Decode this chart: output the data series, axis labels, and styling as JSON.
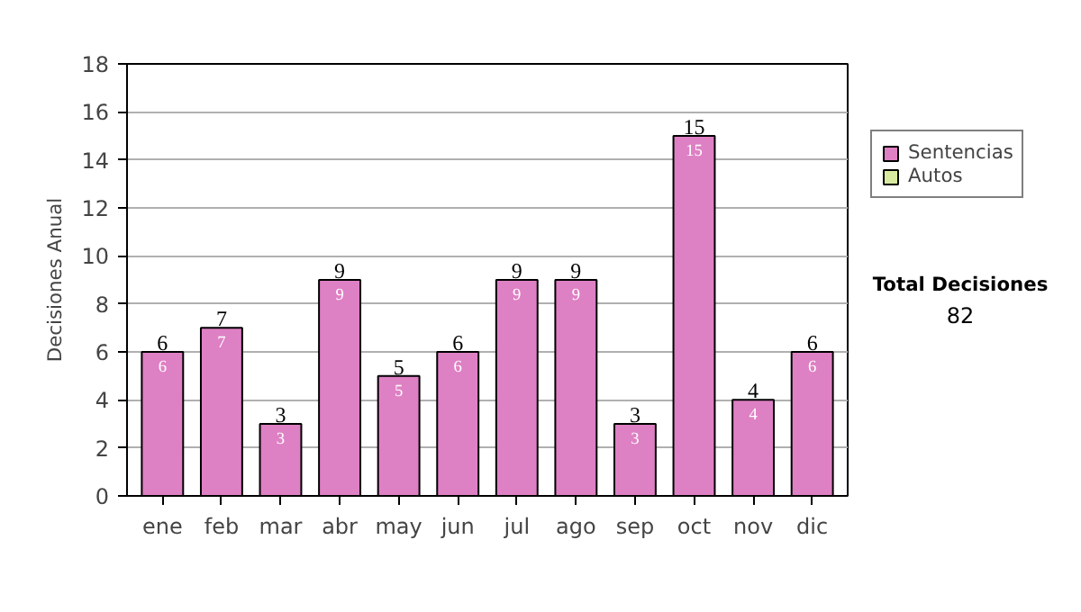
{
  "chart_data": {
    "type": "bar",
    "ylabel": "Decisiones Anual",
    "categories": [
      "ene",
      "feb",
      "mar",
      "abr",
      "may",
      "jun",
      "jul",
      "ago",
      "sep",
      "oct",
      "nov",
      "dic"
    ],
    "series": [
      {
        "name": "Sentencias",
        "color": "#de80c4",
        "values": [
          6,
          7,
          3,
          9,
          5,
          6,
          9,
          9,
          3,
          15,
          4,
          6
        ]
      },
      {
        "name": "Autos",
        "color": "#d8eaa0",
        "values": [
          null,
          null,
          null,
          null,
          null,
          null,
          null,
          null,
          null,
          null,
          null,
          null
        ]
      }
    ],
    "stacked": true,
    "data_labels": true,
    "totals": [
      "6",
      "7",
      "3",
      "9",
      "5",
      "6",
      "9",
      "9",
      "3",
      "15",
      "4",
      "6"
    ],
    "ylim": [
      0,
      18
    ],
    "yticks": [
      0,
      2,
      4,
      6,
      8,
      10,
      12,
      14,
      16,
      18
    ],
    "grid": "y",
    "legend": "right",
    "annotations": [
      "Total Decisiones",
      "82"
    ]
  }
}
